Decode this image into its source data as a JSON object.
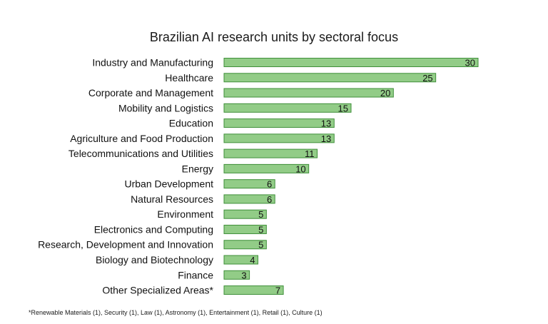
{
  "chart_data": {
    "type": "bar",
    "orientation": "horizontal",
    "title": "Brazilian AI research units by sectoral focus",
    "categories": [
      "Industry and Manufacturing",
      "Healthcare",
      "Corporate and Management",
      "Mobility and Logistics",
      "Education",
      "Agriculture and Food Production",
      "Telecommunications and Utilities",
      "Energy",
      "Urban Development",
      "Natural Resources",
      "Environment",
      "Electronics and Computing",
      "Research, Development and Innovation",
      "Biology and Biotechnology",
      "Finance",
      "Other Specialized Areas*"
    ],
    "values": [
      30,
      25,
      20,
      15,
      13,
      13,
      11,
      10,
      6,
      6,
      5,
      5,
      5,
      4,
      3,
      7
    ],
    "xlim": [
      0,
      30
    ],
    "grid": false,
    "legend": "none",
    "data_labels": true,
    "bar_color": "#92cc87",
    "bar_edge_color": "#3f8f3a",
    "footnote": "*Renewable Materials (1), Security (1), Law (1), Astronomy (1), Entertainment (1), Retail (1), Culture (1)"
  }
}
